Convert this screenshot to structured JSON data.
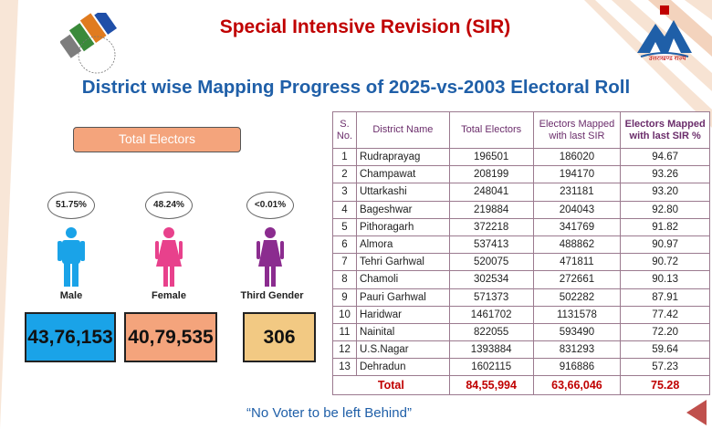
{
  "header": {
    "title": "Special Intensive Revision (SIR)",
    "subtitle": "District wise Mapping Progress of 2025-vs-2003 Electoral Roll"
  },
  "logos": {
    "left_icon": "eci-ballot-logo",
    "right_icon": "uttarakhand-seal",
    "right_text": "उत्तराखण्ड राज्य"
  },
  "summary": {
    "label": "Total Electors",
    "groups": [
      {
        "label": "Male",
        "percent": "51.75%",
        "count": "43,76,153",
        "color": "#1aa3e8",
        "icon": "male-person-icon"
      },
      {
        "label": "Female",
        "percent": "48.24%",
        "count": "40,79,535",
        "color": "#f4a47c",
        "icon": "female-person-icon"
      },
      {
        "label": "Third Gender",
        "percent": "<0.01%",
        "count": "306",
        "color": "#f2c983",
        "icon": "third-gender-person-icon"
      }
    ]
  },
  "table": {
    "headers": {
      "sno": "S. No.",
      "district": "District Name",
      "total": "Total Electors",
      "mapped": "Electors Mapped with last SIR",
      "pct": "Electors Mapped with last SIR %"
    },
    "rows": [
      {
        "sno": "1",
        "district": "Rudraprayag",
        "total": "196501",
        "mapped": "186020",
        "pct": "94.67"
      },
      {
        "sno": "2",
        "district": "Champawat",
        "total": "208199",
        "mapped": "194170",
        "pct": "93.26"
      },
      {
        "sno": "3",
        "district": "Uttarkashi",
        "total": "248041",
        "mapped": "231181",
        "pct": "93.20"
      },
      {
        "sno": "4",
        "district": "Bageshwar",
        "total": "219884",
        "mapped": "204043",
        "pct": "92.80"
      },
      {
        "sno": "5",
        "district": "Pithoragarh",
        "total": "372218",
        "mapped": "341769",
        "pct": "91.82"
      },
      {
        "sno": "6",
        "district": "Almora",
        "total": "537413",
        "mapped": "488862",
        "pct": "90.97"
      },
      {
        "sno": "7",
        "district": "Tehri Garhwal",
        "total": "520075",
        "mapped": "471811",
        "pct": "90.72"
      },
      {
        "sno": "8",
        "district": "Chamoli",
        "total": "302534",
        "mapped": "272661",
        "pct": "90.13"
      },
      {
        "sno": "9",
        "district": "Pauri Garhwal",
        "total": "571373",
        "mapped": "502282",
        "pct": "87.91"
      },
      {
        "sno": "10",
        "district": "Haridwar",
        "total": "1461702",
        "mapped": "1131578",
        "pct": "77.42"
      },
      {
        "sno": "11",
        "district": "Nainital",
        "total": "822055",
        "mapped": "593490",
        "pct": "72.20"
      },
      {
        "sno": "12",
        "district": "U.S.Nagar",
        "total": "1393884",
        "mapped": "831293",
        "pct": "59.64"
      },
      {
        "sno": "13",
        "district": "Dehradun",
        "total": "1602115",
        "mapped": "916886",
        "pct": "57.23"
      }
    ],
    "total_row": {
      "label": "Total",
      "total": "84,55,994",
      "mapped": "63,66,046",
      "pct": "75.28"
    }
  },
  "footer": {
    "tagline": "“No Voter to be left Behind”"
  }
}
